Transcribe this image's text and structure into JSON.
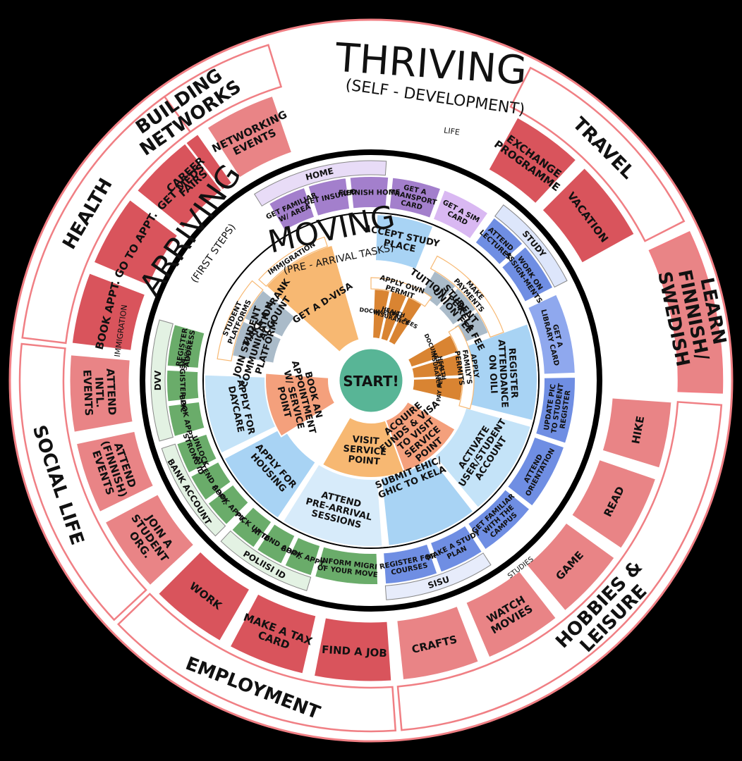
{
  "colors": {
    "background": "#000000",
    "outer_ring": "#ffffff",
    "thriving_red": "#d9545c",
    "thriving_light": "#e98486",
    "thriving_outline": "#f07f84",
    "moving_blue": "#a8d3f4",
    "moving_blue_dark": "#9ccbf0",
    "moving_orange": "#f7b872",
    "moving_orange_dark": "#d98432",
    "moving_salmon": "#f4a07c",
    "moving_gray": "#aabbc9",
    "arriving_green": "#6aac6a",
    "arriving_purple": "#a37fcc",
    "arriving_lilac": "#d9b8f2",
    "arriving_blue": "#6f8ee3",
    "center_teal": "#58b596"
  },
  "titles": {
    "thriving": "THRIVING",
    "thriving_sub": "(SELF - DEVELOPMENT)",
    "arriving": "ARRIVING",
    "arriving_sub": "(FIRST STEPS)",
    "moving": "MOVING",
    "moving_sub": "(PRE - ARRIVAL TASKS)",
    "center": "START!"
  },
  "thriving": {
    "categories": {
      "building_networks": "BUILDING NETWORKS",
      "travel": "TRAVEL",
      "hobbies": "HOBBIES & LEISURE",
      "employment": "EMPLOYMENT",
      "social_life": "SOCIAL LIFE",
      "health": "HEALTH",
      "learn": "LEARN FINNISH/ SWEDISH"
    },
    "items": {
      "networking_events": "NETWORKING EVENTS",
      "career_fairs": "CAREER FAIRS",
      "exchange": "EXCHANGE PROGRAMME",
      "vacation": "VACATION",
      "hike": "HIKE",
      "read": "READ",
      "game": "GAME",
      "watch_movies": "WATCH MOVIES",
      "crafts": "CRAFTS",
      "find_job": "FIND A JOB",
      "tax_card": "MAKE A TAX CARD",
      "work": "WORK",
      "student_org": "JOIN A STUDENT ORG.",
      "finnish_events": "ATTEND (FINNISH) EVENTS",
      "intl_events": "ATTEND INTL. EVENTS",
      "book_appt": "BOOK APPT.",
      "go_appt": "GO TO APPT.",
      "get_meds": "GET MEDS"
    }
  },
  "arriving": {
    "groups": {
      "home": "HOME",
      "life": "LIFE",
      "study": "STUDY",
      "studies_right": "STUDIES",
      "studies_bottom": "STUDIES",
      "sisu": "SISU",
      "polisi_id": "POLIISI ID",
      "bank_account": "BANK ACCOUNT",
      "dvv": "DVV",
      "immigration": "IMMIGRATION"
    },
    "items": {
      "familiar_area": "GET FAMILIAR W/ AREA",
      "get_insured": "GET INSURED",
      "furnish_home": "FURNISH HOME",
      "transport_card": "GET A TRANSPORT CARD",
      "sim_card": "GET A SIM CARD",
      "attend_lectures": "ATTEND LECTURES",
      "work_assignments": "WORK ON ASSIGN-MENTS",
      "library_card": "GET A LIBRARY CARD",
      "update_pic": "UPDATE PIC TO STUDENT REGISTER",
      "attend_orientation": "ATTEND ORIENTATION",
      "familiar_campus": "GET FAMILIAR WITH THE CAMPUS",
      "study_plan": "MAKE A STUDY PLAN",
      "register_courses": "REGISTER FOR COURSES",
      "inform_migri": "INFORM MIGRI OF YOUR MOVE",
      "book_appt_id": "BOOK APPT.",
      "attend_appt_id": "ATTEND APPT.",
      "pick_up_id": "PICK UP ID",
      "book_appt_bank": "BOOK APPT.",
      "attend_appt_bank": "ATTEND APPT.",
      "unlock_id": "UNLOCK STRONG ID",
      "book_appt_dvv": "BOOK APPT.",
      "register_pic": "REGISTER PIC",
      "register_address": "REGISTER ADDRESS"
    }
  },
  "moving": {
    "groups": {
      "student_platforms": "STUDENT PLATFORMS",
      "studies": "STUDIES",
      "immigration": "IMMIGRATION",
      "make_payments": "MAKE PAYMENTS",
      "apply_own_permit": "APPLY OWN PERMIT",
      "apply_family_permits": "APPLY FAMILY'S PERMITS"
    },
    "items": {
      "accept_study_place": "ACCEPT STUDY PLACE",
      "tuition_fee": "TUITION FEE",
      "student_union_fee": "STUDENT UNION FEE",
      "kela_fee": "KELA FEE",
      "register_attendance": "REGISTER ATTENDANCE ON OILI",
      "activate_account": "ACTIVATE USER/STUDENT ACCOUNT",
      "submit_ehic": "SUBMIT EHIC/ GHIC TO KELA",
      "attend_prearrival": "ATTEND PRE-ARRIVAL SESSIONS",
      "apply_housing": "APPLY FOR HOUSING",
      "apply_daycare": "APPLY FOR DAYCARE",
      "join_platform": "JOIN STUDENT COMMUNICATION PLATFORM",
      "frank_account": "MAKE A FRANK ACCOUNT",
      "get_d_visa": "GET A D-VISA",
      "book_appointment": "BOOK AN APPOINTMENT W/ SERVICE POINT",
      "visit_service": "VISIT SERVICE POINT",
      "acquire_funds": "ACQUIRE FUNDS & VISA TO VISIT SERVICE POINT",
      "own_documents": "DOCUMENTS",
      "own_insurance": "HEALTH INSURANCE",
      "own_fees": "PAY FEES",
      "fam_documents": "DOCUMENTS",
      "fam_insurance": "HEALTH INSURANCE",
      "fam_fees": "PAY FEES"
    }
  }
}
